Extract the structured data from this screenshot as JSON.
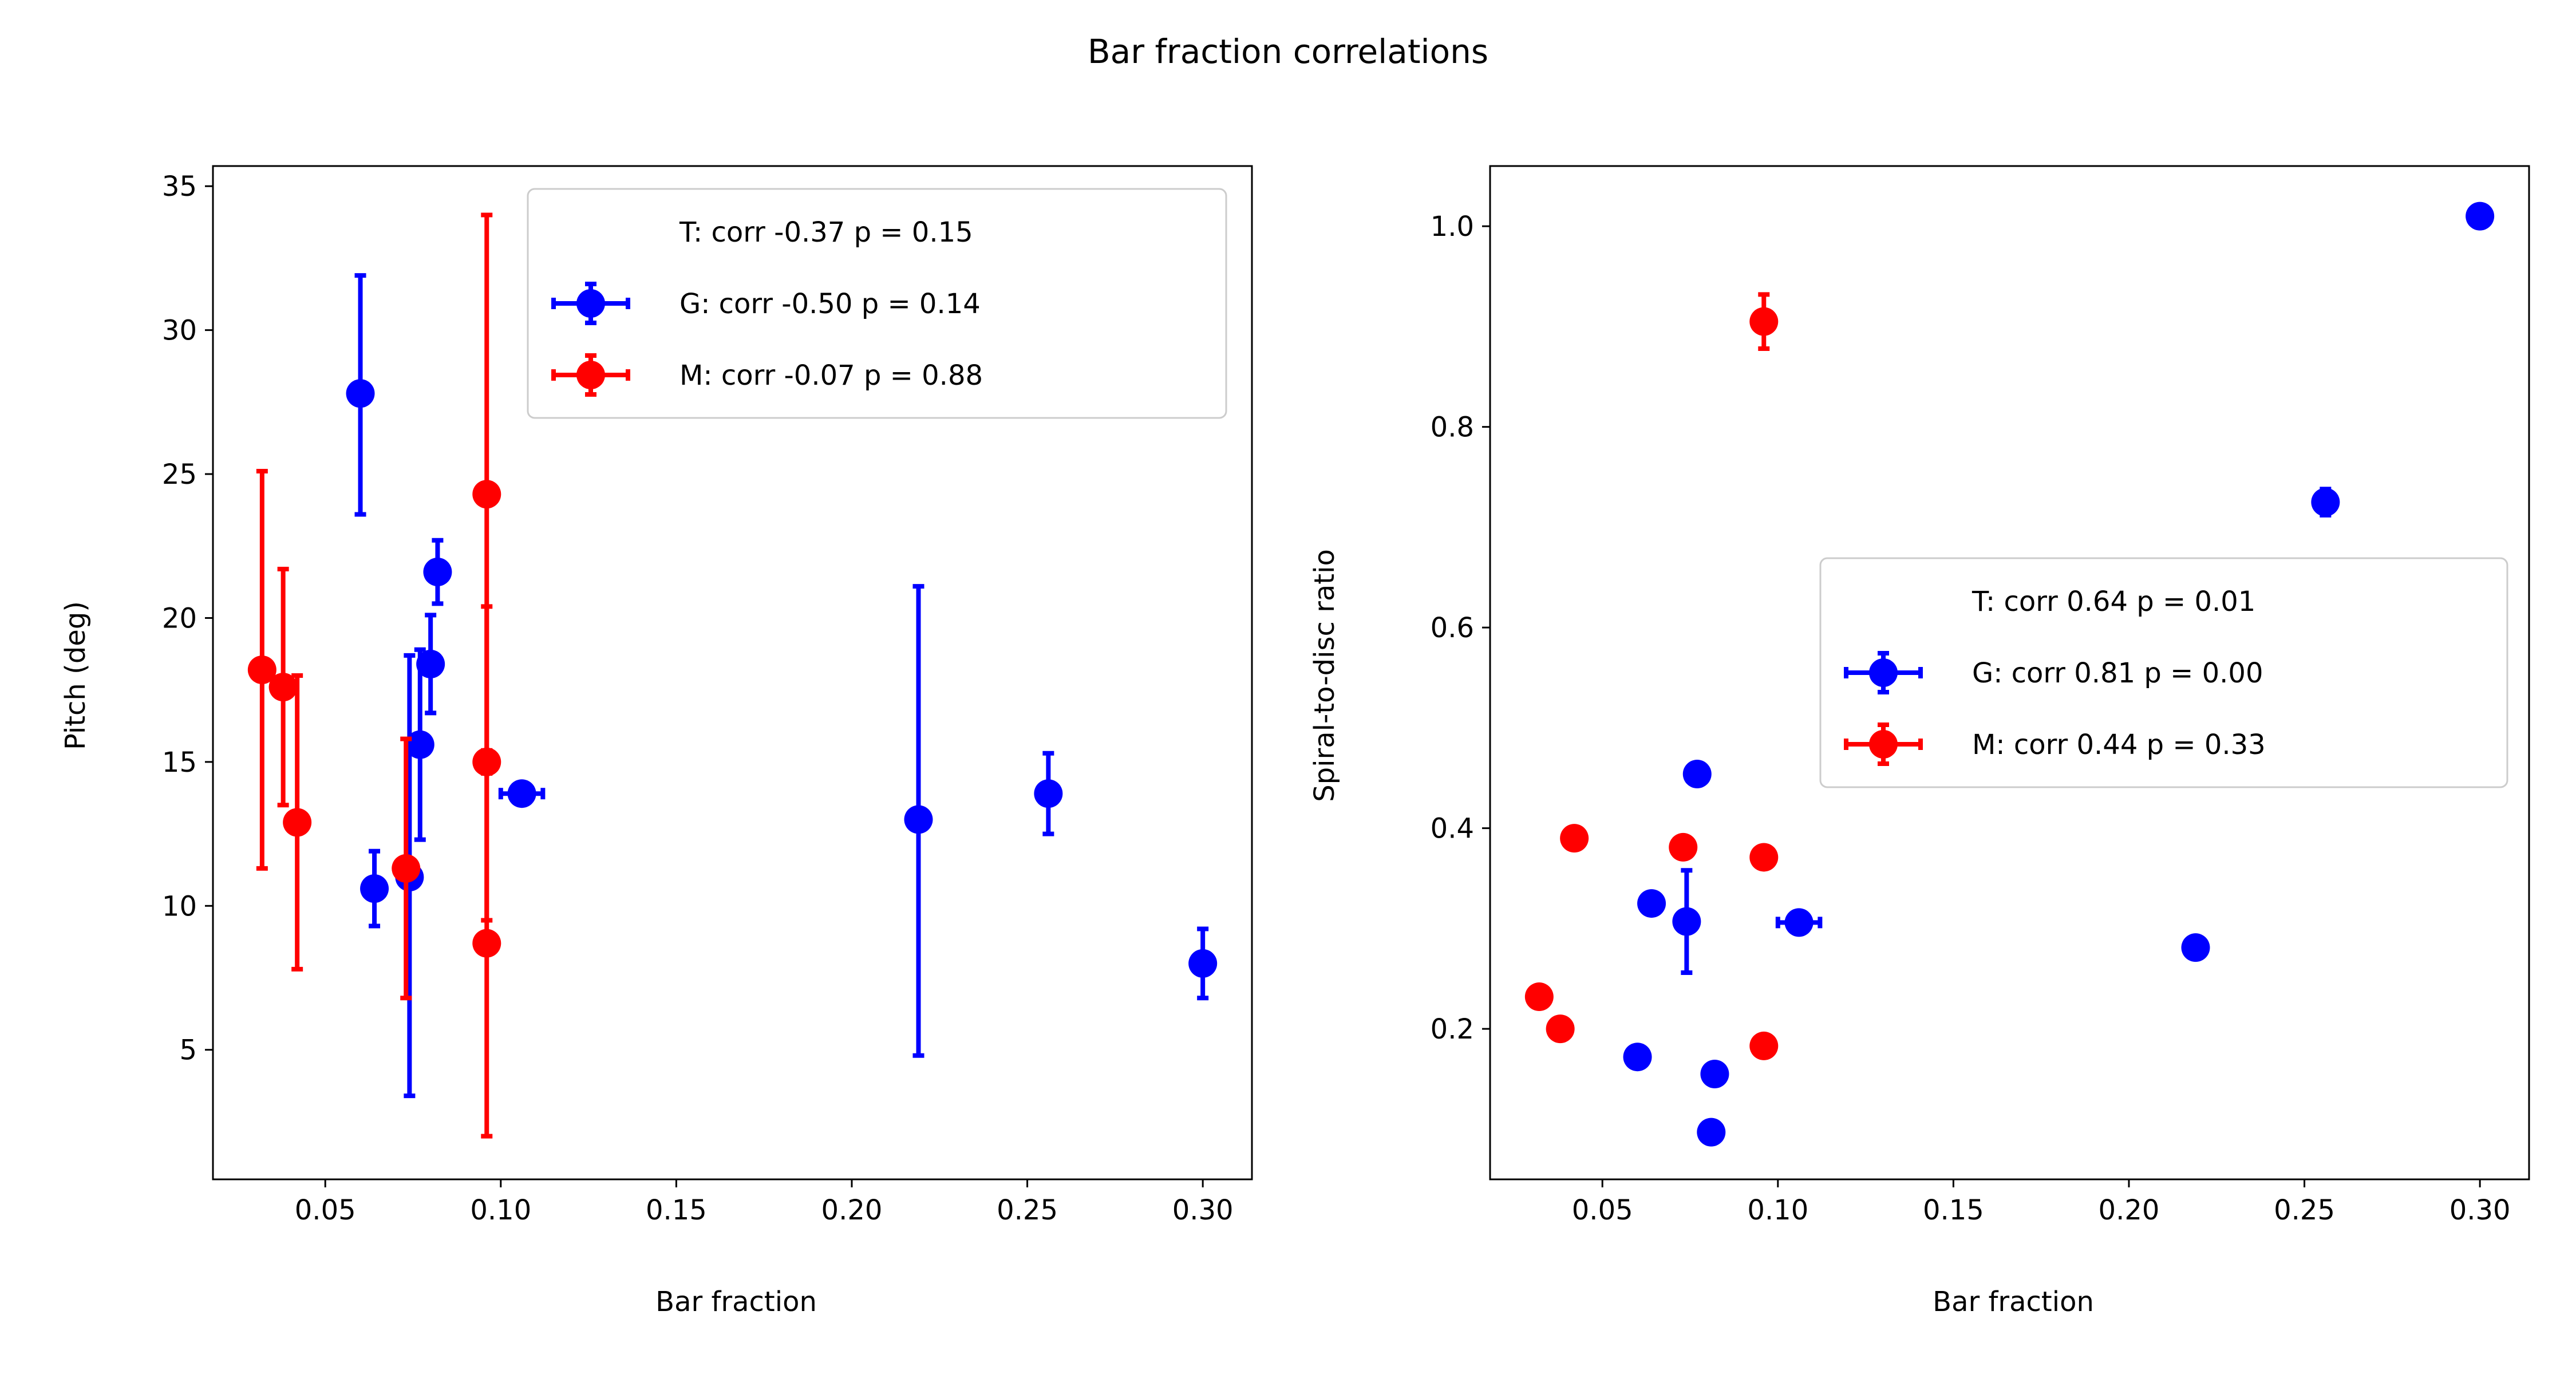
{
  "chart_data": {
    "title": "Bar fraction correlations",
    "panels": [
      {
        "type": "scatter",
        "xlabel": "Bar fraction",
        "ylabel": "Pitch (deg)",
        "xlim": [
          0.018,
          0.314
        ],
        "ylim": [
          0.5,
          35.7
        ],
        "xticks": [
          0.05,
          0.1,
          0.15,
          0.2,
          0.25,
          0.3
        ],
        "xtick_labels": [
          "0.05",
          "0.10",
          "0.15",
          "0.20",
          "0.25",
          "0.30"
        ],
        "yticks": [
          5,
          10,
          15,
          20,
          25,
          30,
          35
        ],
        "ytick_labels": [
          "5",
          "10",
          "15",
          "20",
          "25",
          "30",
          "35"
        ],
        "legend_loc": "top-right",
        "legend": [
          {
            "label": "T: corr -0.37 p = 0.15",
            "color": null
          },
          {
            "label": "G: corr -0.50 p = 0.14",
            "color": "#0000ff"
          },
          {
            "label": "M: corr -0.07 p = 0.88",
            "color": "#ff0000"
          }
        ],
        "series": [
          {
            "name": "G",
            "color": "#0000ff",
            "points": [
              {
                "x": 0.06,
                "y": 27.8,
                "yerr": [
                  23.6,
                  31.9
                ]
              },
              {
                "x": 0.064,
                "y": 10.6,
                "yerr": [
                  9.3,
                  11.9
                ]
              },
              {
                "x": 0.074,
                "y": 11.0,
                "yerr": [
                  3.4,
                  18.7
                ]
              },
              {
                "x": 0.077,
                "y": 15.6,
                "yerr": [
                  12.3,
                  18.9
                ]
              },
              {
                "x": 0.08,
                "y": 18.4,
                "yerr": [
                  16.7,
                  20.1
                ]
              },
              {
                "x": 0.082,
                "y": 21.6,
                "yerr": [
                  20.5,
                  22.7
                ]
              },
              {
                "x": 0.106,
                "y": 13.9,
                "xerr": [
                  0.1,
                  0.112
                ]
              },
              {
                "x": 0.219,
                "y": 13.0,
                "yerr": [
                  4.8,
                  21.1
                ]
              },
              {
                "x": 0.256,
                "y": 13.9,
                "yerr": [
                  12.5,
                  15.3
                ]
              },
              {
                "x": 0.3,
                "y": 8.0,
                "yerr": [
                  6.8,
                  9.2
                ]
              }
            ]
          },
          {
            "name": "M",
            "color": "#ff0000",
            "points": [
              {
                "x": 0.032,
                "y": 18.2,
                "yerr": [
                  11.3,
                  25.1
                ]
              },
              {
                "x": 0.038,
                "y": 17.6,
                "yerr": [
                  13.5,
                  21.7
                ]
              },
              {
                "x": 0.042,
                "y": 12.9,
                "yerr": [
                  7.8,
                  18.0
                ]
              },
              {
                "x": 0.073,
                "y": 11.3,
                "yerr": [
                  6.8,
                  15.8
                ]
              },
              {
                "x": 0.096,
                "y": 24.3,
                "yerr": [
                  14.6,
                  34.0
                ]
              },
              {
                "x": 0.096,
                "y": 15.0,
                "yerr": [
                  9.5,
                  20.4
                ]
              },
              {
                "x": 0.096,
                "y": 8.7,
                "yerr": [
                  2.0,
                  15.4
                ]
              }
            ]
          }
        ]
      },
      {
        "type": "scatter",
        "xlabel": "Bar fraction",
        "ylabel": "Spiral-to-disc ratio",
        "xlim": [
          0.018,
          0.314
        ],
        "ylim": [
          0.05,
          1.06
        ],
        "xticks": [
          0.05,
          0.1,
          0.15,
          0.2,
          0.25,
          0.3
        ],
        "xtick_labels": [
          "0.05",
          "0.10",
          "0.15",
          "0.20",
          "0.25",
          "0.30"
        ],
        "yticks": [
          0.2,
          0.4,
          0.6,
          0.8,
          1.0
        ],
        "ytick_labels": [
          "0.2",
          "0.4",
          "0.6",
          "0.8",
          "1.0"
        ],
        "legend_loc": "center-right",
        "legend": [
          {
            "label": "T: corr 0.64 p = 0.01",
            "color": null
          },
          {
            "label": "G: corr 0.81 p = 0.00",
            "color": "#0000ff"
          },
          {
            "label": "M: corr 0.44 p = 0.33",
            "color": "#ff0000"
          }
        ],
        "series": [
          {
            "name": "G",
            "color": "#0000ff",
            "points": [
              {
                "x": 0.06,
                "y": 0.172
              },
              {
                "x": 0.064,
                "y": 0.325
              },
              {
                "x": 0.074,
                "y": 0.307,
                "yerr": [
                  0.256,
                  0.358
                ]
              },
              {
                "x": 0.077,
                "y": 0.454
              },
              {
                "x": 0.081,
                "y": 0.097
              },
              {
                "x": 0.082,
                "y": 0.155
              },
              {
                "x": 0.106,
                "y": 0.306,
                "xerr": [
                  0.1,
                  0.112
                ]
              },
              {
                "x": 0.219,
                "y": 0.281
              },
              {
                "x": 0.256,
                "y": 0.725,
                "yerr": [
                  0.712,
                  0.738
                ]
              },
              {
                "x": 0.3,
                "y": 1.01
              }
            ]
          },
          {
            "name": "M",
            "color": "#ff0000",
            "points": [
              {
                "x": 0.032,
                "y": 0.232
              },
              {
                "x": 0.038,
                "y": 0.2
              },
              {
                "x": 0.042,
                "y": 0.39
              },
              {
                "x": 0.073,
                "y": 0.381
              },
              {
                "x": 0.096,
                "y": 0.371
              },
              {
                "x": 0.096,
                "y": 0.183
              },
              {
                "x": 0.096,
                "y": 0.905,
                "yerr": [
                  0.878,
                  0.932
                ]
              }
            ]
          }
        ]
      }
    ]
  }
}
